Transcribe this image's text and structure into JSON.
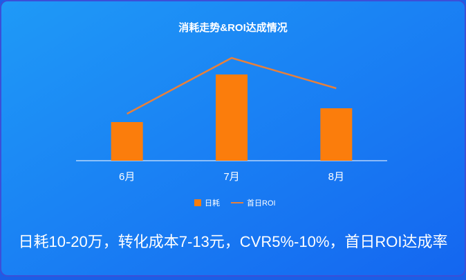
{
  "chart_data": {
    "type": "bar",
    "title": "消耗走势&ROI达成情况",
    "categories": [
      "6月",
      "7月",
      "8月"
    ],
    "series": [
      {
        "name": "日耗",
        "type": "bar",
        "color": "#fb7d0c",
        "values": [
          56,
          125,
          76
        ]
      },
      {
        "name": "首日ROI",
        "type": "line",
        "color": "#e8803a",
        "values": [
          68,
          149,
          105
        ]
      }
    ],
    "legend": "bottom"
  },
  "caption": "日耗10-20万，转化成本7-13元，CVR5%-10%，首日ROI达成率"
}
